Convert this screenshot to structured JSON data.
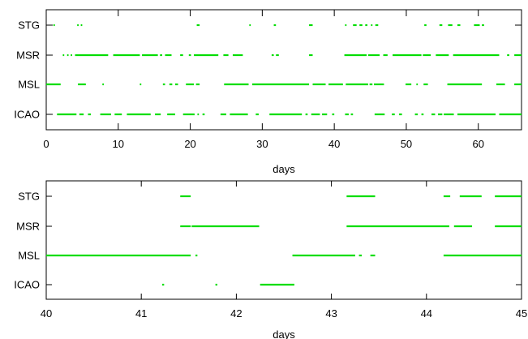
{
  "chart_data": [
    {
      "type": "timeline",
      "xlabel": "days",
      "xlim": [
        0,
        66
      ],
      "xticks": [
        0,
        10,
        20,
        30,
        40,
        50,
        60
      ],
      "rows": [
        "STG",
        "MSR",
        "MSL",
        "ICAO"
      ],
      "color": "#00dd00",
      "grid": false,
      "series": [
        {
          "name": "STG",
          "segments": [
            [
              1.0,
              1.2
            ],
            [
              4.3,
              4.5
            ],
            [
              4.8,
              5.0
            ],
            [
              20.9,
              21.3
            ],
            [
              28.2,
              28.4
            ],
            [
              31.6,
              31.9
            ],
            [
              36.5,
              37.0
            ],
            [
              41.5,
              41.7
            ],
            [
              42.6,
              43.1
            ],
            [
              43.5,
              43.9
            ],
            [
              44.3,
              44.6
            ],
            [
              45.1,
              45.3
            ],
            [
              45.7,
              46.1
            ],
            [
              52.5,
              52.8
            ],
            [
              54.6,
              55.0
            ],
            [
              55.8,
              56.4
            ],
            [
              57.1,
              57.5
            ],
            [
              59.4,
              60.2
            ],
            [
              60.5,
              60.8
            ]
          ]
        },
        {
          "name": "MSR",
          "segments": [
            [
              2.3,
              2.5
            ],
            [
              2.9,
              3.1
            ],
            [
              3.4,
              3.6
            ],
            [
              4.0,
              8.6
            ],
            [
              9.3,
              13.0
            ],
            [
              13.3,
              15.5
            ],
            [
              15.8,
              16.1
            ],
            [
              16.5,
              17.4
            ],
            [
              18.6,
              19.0
            ],
            [
              19.8,
              20.1
            ],
            [
              20.5,
              23.9
            ],
            [
              24.6,
              25.3
            ],
            [
              25.9,
              27.3
            ],
            [
              31.3,
              31.6
            ],
            [
              31.9,
              32.3
            ],
            [
              36.5,
              37.0
            ],
            [
              41.4,
              44.5
            ],
            [
              44.7,
              46.3
            ],
            [
              46.8,
              47.4
            ],
            [
              48.1,
              52.1
            ],
            [
              52.3,
              53.4
            ],
            [
              54.1,
              55.9
            ],
            [
              56.5,
              62.9
            ],
            [
              64.0,
              64.3
            ],
            [
              65.0,
              66.0
            ]
          ]
        },
        {
          "name": "MSL",
          "segments": [
            [
              0,
              2.0
            ],
            [
              4.4,
              5.5
            ],
            [
              7.8,
              8.0
            ],
            [
              13.0,
              13.2
            ],
            [
              16.2,
              16.5
            ],
            [
              17.1,
              17.5
            ],
            [
              17.9,
              18.3
            ],
            [
              19.4,
              20.5
            ],
            [
              20.8,
              21.3
            ],
            [
              24.7,
              28.1
            ],
            [
              28.6,
              36.5
            ],
            [
              37.0,
              38.8
            ],
            [
              39.2,
              41.2
            ],
            [
              41.6,
              44.7
            ],
            [
              44.9,
              45.3
            ],
            [
              45.5,
              46.9
            ],
            [
              49.9,
              50.7
            ],
            [
              51.4,
              51.6
            ],
            [
              52.4,
              53.0
            ],
            [
              55.7,
              60.5
            ],
            [
              62.5,
              63.7
            ],
            [
              65.0,
              66.0
            ]
          ]
        },
        {
          "name": "ICAO",
          "segments": [
            [
              1.5,
              4.2
            ],
            [
              4.6,
              5.2
            ],
            [
              5.8,
              6.2
            ],
            [
              7.5,
              9.0
            ],
            [
              9.5,
              10.5
            ],
            [
              11.2,
              14.5
            ],
            [
              15.1,
              15.9
            ],
            [
              16.8,
              17.9
            ],
            [
              19.0,
              20.6
            ],
            [
              21.0,
              21.2
            ],
            [
              21.7,
              22.0
            ],
            [
              24.2,
              25.0
            ],
            [
              25.5,
              28.0
            ],
            [
              29.1,
              29.5
            ],
            [
              31.0,
              35.5
            ],
            [
              36.0,
              36.3
            ],
            [
              36.8,
              38.0
            ],
            [
              38.3,
              39.0
            ],
            [
              39.7,
              40.0
            ],
            [
              41.5,
              42.0
            ],
            [
              42.3,
              42.6
            ],
            [
              45.6,
              47.0
            ],
            [
              48.0,
              48.4
            ],
            [
              49.0,
              49.4
            ],
            [
              51.2,
              51.6
            ],
            [
              52.1,
              52.4
            ],
            [
              53.5,
              54.0
            ],
            [
              54.4,
              55.0
            ],
            [
              55.2,
              56.6
            ],
            [
              57.1,
              62.4
            ],
            [
              62.9,
              66.0
            ]
          ]
        }
      ]
    },
    {
      "type": "timeline",
      "xlabel": "days",
      "xlim": [
        40,
        45
      ],
      "xticks": [
        40,
        41,
        42,
        43,
        44,
        45
      ],
      "rows": [
        "STG",
        "MSR",
        "MSL",
        "ICAO"
      ],
      "color": "#00dd00",
      "grid": false,
      "series": [
        {
          "name": "STG",
          "segments": [
            [
              41.41,
              41.52
            ],
            [
              43.16,
              43.46
            ],
            [
              44.18,
              44.25
            ],
            [
              44.35,
              44.58
            ],
            [
              44.72,
              45.0
            ]
          ]
        },
        {
          "name": "MSR",
          "segments": [
            [
              41.41,
              41.52
            ],
            [
              41.53,
              42.24
            ],
            [
              43.16,
              44.24
            ],
            [
              44.29,
              44.48
            ],
            [
              44.72,
              45.0
            ]
          ]
        },
        {
          "name": "MSL",
          "segments": [
            [
              40.0,
              41.52
            ],
            [
              41.57,
              41.59
            ],
            [
              42.59,
              43.25
            ],
            [
              43.29,
              43.32
            ],
            [
              43.41,
              43.46
            ],
            [
              44.18,
              45.0
            ]
          ]
        },
        {
          "name": "ICAO",
          "segments": [
            [
              41.22,
              41.24
            ],
            [
              41.78,
              41.8
            ],
            [
              42.25,
              42.61
            ]
          ]
        }
      ]
    }
  ]
}
